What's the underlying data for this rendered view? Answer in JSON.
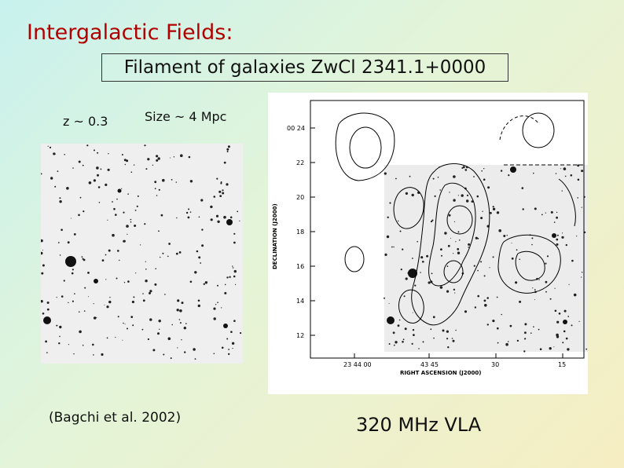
{
  "slide": {
    "title": "Intergalactic Fields:",
    "subtitle": "Filament of galaxies ZwCl 2341.1+0000",
    "redshift": "z ~ 0.3",
    "size": "Size ~ 4 Mpc",
    "citation": "(Bagchi et al. 2002)",
    "frequency": "320 MHz VLA"
  },
  "radio_map": {
    "y_axis_label": "DECLINATION (J2000)",
    "y_ticks": [
      "00 24",
      "22",
      "20",
      "18",
      "16",
      "14",
      "12"
    ],
    "x_axis_label": "RIGHT ASCENSION (J2000)",
    "x_ticks": [
      "23 44 00",
      "43 45",
      "30",
      "15"
    ]
  },
  "colors": {
    "title": "#b00000",
    "text": "#111111"
  }
}
